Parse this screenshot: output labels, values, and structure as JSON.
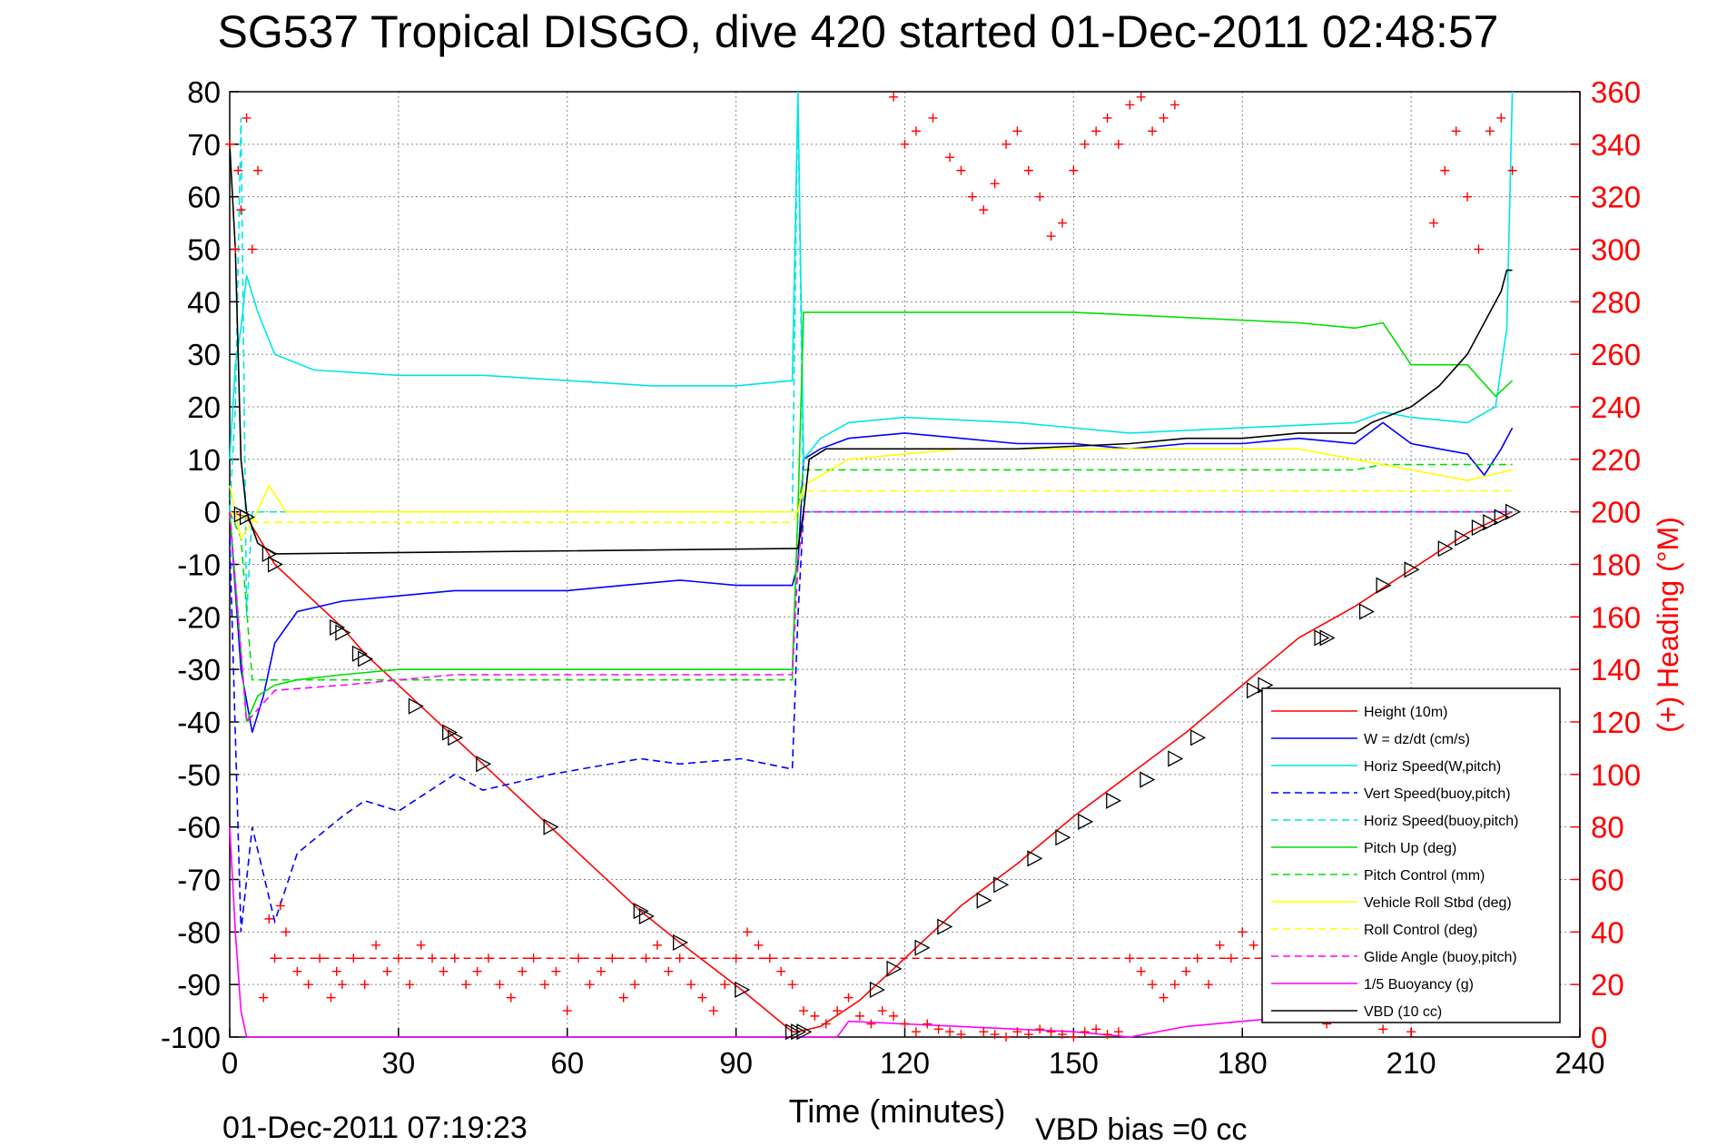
{
  "title": "SG537 Tropical DISGO, dive 420 started 01-Dec-2011 02:48:57",
  "footer": {
    "end_time": "01-Dec-2011 07:19:23",
    "vbd_bias": "VBD bias =0 cc"
  },
  "chart_data": {
    "type": "line",
    "xlabel": "Time (minutes)",
    "ylabel_left": "",
    "ylabel_right": "(+) Heading (°M)",
    "xlim": [
      0,
      240
    ],
    "ylim_left": [
      -100,
      80
    ],
    "ylim_right": [
      0,
      360
    ],
    "xticks": [
      0,
      30,
      60,
      90,
      120,
      150,
      180,
      210,
      240
    ],
    "xtick_labels": [
      "0",
      "30",
      "60",
      "90",
      "120",
      "150",
      "180",
      "210",
      "240"
    ],
    "yticks_left": [
      -100,
      -90,
      -80,
      -70,
      -60,
      -50,
      -40,
      -30,
      -20,
      -10,
      0,
      10,
      20,
      30,
      40,
      50,
      60,
      70,
      80
    ],
    "ytick_labels_left": [
      "-100",
      "-90",
      "-80",
      "-70",
      "-60",
      "-50",
      "-40",
      "-30",
      "-20",
      "-10",
      "0",
      "10",
      "20",
      "30",
      "40",
      "50",
      "60",
      "70",
      "80"
    ],
    "yticks_right": [
      0,
      20,
      40,
      60,
      80,
      100,
      120,
      140,
      160,
      180,
      200,
      220,
      240,
      260,
      280,
      300,
      320,
      340,
      360
    ],
    "ytick_labels_right": [
      "0",
      "20",
      "40",
      "60",
      "80",
      "100",
      "120",
      "140",
      "160",
      "180",
      "200",
      "220",
      "240",
      "260",
      "280",
      "300",
      "320",
      "340",
      "360"
    ],
    "grid": true,
    "legend_position": "bottom-right",
    "colors": {
      "heading": "#ff0000",
      "right_axis": "#ff0000",
      "grid": "#888888"
    },
    "series": [
      {
        "name": "Height (10m)",
        "color": "#ff0000",
        "dash": "solid",
        "x": [
          0,
          3,
          8,
          20,
          24,
          33,
          40,
          45,
          57,
          73,
          80,
          91,
          100,
          101,
          105,
          112,
          120,
          130,
          140,
          150,
          160,
          170,
          180,
          190,
          200,
          210,
          220,
          228
        ],
        "y": [
          0,
          -1,
          -10,
          -22,
          -27,
          -36,
          -43,
          -48,
          -60,
          -76,
          -82,
          -91,
          -99,
          -99,
          -98,
          -93,
          -85,
          -75,
          -67,
          -58,
          -50,
          -42,
          -33,
          -24,
          -18,
          -11,
          -4,
          0
        ]
      },
      {
        "name": "W = dz/dt (cm/s)",
        "color": "#0000ff",
        "dash": "solid",
        "x": [
          0,
          2,
          4,
          6,
          8,
          12,
          20,
          30,
          40,
          50,
          60,
          70,
          80,
          90,
          100,
          101,
          102,
          105,
          110,
          120,
          130,
          140,
          150,
          160,
          170,
          180,
          190,
          200,
          205,
          210,
          215,
          220,
          223,
          226,
          228
        ],
        "y": [
          0,
          -30,
          -42,
          -35,
          -25,
          -19,
          -17,
          -16,
          -15,
          -15,
          -15,
          -14,
          -13,
          -14,
          -14,
          -10,
          10,
          12,
          14,
          15,
          14,
          13,
          13,
          12,
          13,
          13,
          14,
          13,
          17,
          13,
          12,
          11,
          7,
          12,
          16
        ]
      },
      {
        "name": "Horiz Speed(W,pitch)",
        "color": "#00e5e5",
        "dash": "solid",
        "x": [
          0,
          1,
          2,
          3,
          5,
          8,
          15,
          30,
          45,
          60,
          75,
          90,
          100,
          101,
          102,
          105,
          110,
          120,
          140,
          160,
          180,
          200,
          205,
          210,
          220,
          225,
          227,
          228
        ],
        "y": [
          10,
          28,
          35,
          45,
          38,
          30,
          27,
          26,
          26,
          25,
          24,
          24,
          25,
          80,
          10,
          14,
          17,
          18,
          17,
          15,
          16,
          17,
          19,
          18,
          17,
          20,
          35,
          80
        ]
      },
      {
        "name": "Vert Speed(buoy,pitch)",
        "color": "#0000ff",
        "dash": "dashed",
        "x": [
          0,
          2,
          4,
          8,
          12,
          20,
          24,
          30,
          40,
          45,
          57,
          73,
          80,
          91,
          100,
          101,
          102,
          120,
          150,
          180,
          200,
          210,
          228
        ],
        "y": [
          -5,
          -80,
          -60,
          -78,
          -65,
          -58,
          -55,
          -57,
          -50,
          -53,
          -50,
          -47,
          -48,
          -47,
          -49,
          -20,
          0,
          0,
          0,
          0,
          0,
          0,
          0
        ]
      },
      {
        "name": "Horiz Speed(buoy,pitch)",
        "color": "#00e5e5",
        "dash": "dashed",
        "x": [
          0,
          1,
          2,
          3,
          4,
          100,
          101,
          102,
          228
        ],
        "y": [
          0,
          20,
          75,
          -20,
          0,
          0,
          80,
          0,
          0
        ]
      },
      {
        "name": "Pitch Up (deg)",
        "color": "#00dd00",
        "dash": "solid",
        "x": [
          0,
          3,
          5,
          8,
          12,
          20,
          30,
          40,
          50,
          60,
          70,
          80,
          90,
          100,
          101,
          102,
          110,
          130,
          150,
          170,
          190,
          200,
          205,
          210,
          220,
          225,
          228
        ],
        "y": [
          0,
          -40,
          -35,
          -33,
          -32,
          -31,
          -30,
          -30,
          -30,
          -30,
          -30,
          -30,
          -30,
          -30,
          0,
          38,
          38,
          38,
          38,
          37,
          36,
          35,
          36,
          28,
          28,
          22,
          25
        ]
      },
      {
        "name": "Pitch Control (mm)",
        "color": "#00dd00",
        "dash": "dashed",
        "x": [
          0,
          2,
          4,
          100,
          101,
          102,
          200,
          205,
          210,
          228
        ],
        "y": [
          0,
          -5,
          -32,
          -32,
          0,
          8,
          8,
          9,
          9,
          9
        ]
      },
      {
        "name": "Vehicle Roll Stbd (deg)",
        "color": "#ffff00",
        "dash": "solid",
        "x": [
          0,
          2,
          4,
          7,
          10,
          20,
          30,
          40,
          50,
          60,
          70,
          80,
          90,
          100,
          101,
          102,
          110,
          130,
          150,
          170,
          190,
          200,
          210,
          220,
          228
        ],
        "y": [
          5,
          -5,
          -2,
          5,
          0,
          0,
          0,
          0,
          0,
          0,
          0,
          0,
          0,
          0,
          0,
          5,
          10,
          12,
          12,
          12,
          12,
          10,
          8,
          6,
          8
        ]
      },
      {
        "name": "Roll Control (deg)",
        "color": "#ffff00",
        "dash": "dashed",
        "x": [
          0,
          5,
          100,
          101,
          102,
          228
        ],
        "y": [
          0,
          -2,
          -2,
          0,
          4,
          4
        ]
      },
      {
        "name": "Glide Angle (buoy,pitch)",
        "color": "#ff00ff",
        "dash": "dashed",
        "x": [
          0,
          3,
          8,
          20,
          40,
          60,
          80,
          100,
          101,
          102,
          228
        ],
        "y": [
          0,
          -40,
          -34,
          -33,
          -31,
          -31,
          -31,
          -31,
          -10,
          0,
          0
        ]
      },
      {
        "name": "1/5 Buoyancy (g)",
        "color": "#ff00ff",
        "dash": "solid",
        "x": [
          0,
          1,
          2,
          3,
          100,
          108,
          110,
          130,
          150,
          160,
          170,
          180,
          190,
          200,
          210,
          228
        ],
        "y": [
          -60,
          -80,
          -95,
          -100,
          -100,
          -100,
          -97,
          -98,
          -99,
          -100,
          -98,
          -97,
          -96,
          -96,
          -96,
          -96
        ]
      },
      {
        "name": "VBD (10 cc)",
        "color": "#000000",
        "dash": "solid",
        "x": [
          0,
          1,
          2,
          3,
          5,
          8,
          100,
          101,
          102,
          103,
          106,
          140,
          160,
          170,
          180,
          190,
          200,
          203,
          210,
          215,
          220,
          224,
          226,
          227,
          228
        ],
        "y": [
          70,
          50,
          10,
          0,
          -6,
          -8,
          -7,
          -7,
          0,
          10,
          12,
          12,
          13,
          14,
          14,
          15,
          15,
          17,
          20,
          24,
          30,
          38,
          42,
          46,
          46
        ]
      }
    ],
    "heading": {
      "name": "Heading",
      "axis": "right",
      "marker": "+",
      "color": "#ff0000",
      "x": [
        0,
        1,
        1.5,
        2,
        3,
        4,
        5,
        6,
        7,
        8,
        9,
        10,
        12,
        14,
        16,
        18,
        19,
        20,
        22,
        24,
        26,
        28,
        30,
        32,
        34,
        36,
        38,
        40,
        42,
        44,
        46,
        48,
        50,
        52,
        54,
        56,
        58,
        60,
        62,
        64,
        66,
        68,
        70,
        72,
        74,
        76,
        78,
        80,
        82,
        84,
        86,
        88,
        90,
        92,
        94,
        96,
        98,
        100,
        102,
        104,
        106,
        108,
        110,
        112,
        114,
        116,
        118,
        120,
        122,
        124,
        126,
        128,
        130,
        134,
        136,
        138,
        140,
        142,
        144,
        146,
        148,
        150,
        152,
        154,
        156,
        158,
        160,
        162,
        164,
        166,
        168,
        170,
        172,
        174,
        176,
        178,
        180,
        182,
        184,
        186,
        190,
        195,
        200,
        205,
        210,
        214,
        216,
        218,
        220,
        222,
        224,
        226,
        228
      ],
      "y": [
        340,
        300,
        330,
        315,
        350,
        300,
        330,
        15,
        45,
        30,
        50,
        40,
        25,
        20,
        30,
        15,
        25,
        20,
        30,
        20,
        35,
        25,
        30,
        20,
        35,
        30,
        25,
        30,
        20,
        25,
        30,
        20,
        15,
        25,
        30,
        20,
        25,
        10,
        30,
        20,
        25,
        30,
        15,
        20,
        30,
        35,
        25,
        30,
        20,
        15,
        10,
        20,
        30,
        40,
        35,
        30,
        25,
        20,
        10,
        8,
        5,
        10,
        15,
        8,
        5,
        10,
        8,
        5,
        2,
        5,
        3,
        2,
        1,
        2,
        1,
        0,
        2,
        1,
        3,
        2,
        1,
        0,
        2,
        3,
        1,
        2,
        30,
        25,
        20,
        15,
        20,
        25,
        30,
        20,
        35,
        30,
        40,
        35,
        30,
        20,
        10,
        5,
        8,
        3,
        2,
        310,
        330,
        345,
        320,
        300,
        345,
        350,
        330
      ],
      "upper_x": [
        118,
        120,
        122,
        125,
        128,
        130,
        132,
        134,
        136,
        138,
        140,
        142,
        144,
        146,
        148,
        150,
        152,
        154,
        156,
        158,
        160,
        162,
        164,
        166,
        168
      ],
      "upper_y": [
        358,
        340,
        345,
        350,
        335,
        330,
        320,
        315,
        325,
        340,
        345,
        330,
        320,
        305,
        310,
        330,
        340,
        345,
        350,
        340,
        355,
        358,
        345,
        350,
        355
      ]
    },
    "heading_target": {
      "value": 30,
      "axis": "right",
      "color": "#ff0000",
      "dash": "dashed",
      "x": [
        8,
        188
      ]
    },
    "depth_markers": {
      "marker": "triangle",
      "color": "#000000",
      "x": [
        2,
        3,
        7,
        8,
        19,
        20,
        23,
        24,
        33,
        39,
        40,
        45,
        57,
        73,
        74,
        80,
        91,
        100,
        101,
        102,
        115,
        118,
        123,
        127,
        134,
        137,
        143,
        148,
        152,
        157,
        163,
        168,
        172,
        182,
        184,
        194,
        195,
        202,
        205,
        210,
        216,
        219,
        222,
        224,
        226,
        228
      ],
      "y": [
        -0.5,
        -1,
        -8,
        -10,
        -22,
        -23,
        -27,
        -28,
        -37,
        -42,
        -43,
        -48,
        -60,
        -76,
        -77,
        -82,
        -91,
        -99,
        -99,
        -99,
        -91,
        -87,
        -83,
        -79,
        -74,
        -71,
        -66,
        -62,
        -59,
        -55,
        -51,
        -47,
        -43,
        -34,
        -33,
        -24,
        -24,
        -19,
        -14,
        -11,
        -7,
        -5,
        -3,
        -2,
        -1,
        0
      ]
    }
  }
}
